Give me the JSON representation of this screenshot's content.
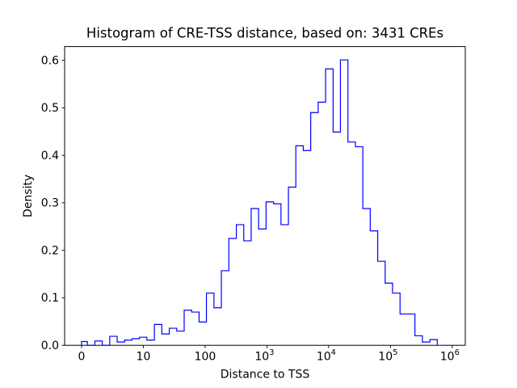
{
  "figure": {
    "title": "Histogram of CRE-TSS distance, based on: 3431 CREs",
    "background_color": "#ffffff",
    "line_color": "#0000ff",
    "axis_color": "#000000"
  },
  "chart_data": {
    "type": "bar",
    "subtype": "step-histogram",
    "title": "Histogram of CRE-TSS distance, based on: 3431 CREs",
    "xlabel": "Distance to TSS",
    "ylabel": "Density",
    "sample_count_text": "3431 CREs",
    "xscale": "symlog",
    "legend": "none",
    "grid": false,
    "ylim": [
      0,
      0.629
    ],
    "xticks": [
      {
        "value": 0,
        "label": "0",
        "exponent": null
      },
      {
        "value": 10,
        "label": "10",
        "exponent": null
      },
      {
        "value": 100,
        "label": "100",
        "exponent": null
      },
      {
        "value": 1000,
        "label": "10",
        "exponent": "3"
      },
      {
        "value": 10000,
        "label": "10",
        "exponent": "4"
      },
      {
        "value": 100000,
        "label": "10",
        "exponent": "5"
      },
      {
        "value": 1000000,
        "label": "10",
        "exponent": "6"
      }
    ],
    "yticks": [
      {
        "value": 0.0,
        "label": "0.0"
      },
      {
        "value": 0.1,
        "label": "0.1"
      },
      {
        "value": 0.2,
        "label": "0.2"
      },
      {
        "value": 0.3,
        "label": "0.3"
      },
      {
        "value": 0.4,
        "label": "0.4"
      },
      {
        "value": 0.5,
        "label": "0.5"
      },
      {
        "value": 0.6,
        "label": "0.6"
      }
    ],
    "bin_edges": [
      0,
      0.94,
      2.15,
      3.35,
      4.56,
      5.76,
      6.97,
      8.17,
      9.38,
      11.4,
      15.1,
      19.9,
      26.3,
      34.7,
      45.8,
      60.5,
      79.8,
      105,
      139,
      183,
      242,
      320,
      422,
      556,
      734,
      969,
      1280,
      1690,
      2230,
      2940,
      3880,
      5120,
      6760,
      8920,
      11800,
      15500,
      20500,
      27100,
      35700,
      47100,
      62200,
      82100,
      108000,
      143000,
      189000,
      249000,
      329000,
      434000,
      573000
    ],
    "densities": [
      0.008,
      0.0,
      0.009,
      0.0,
      0.019,
      0.007,
      0.011,
      0.014,
      0.017,
      0.011,
      0.044,
      0.024,
      0.036,
      0.03,
      0.074,
      0.07,
      0.049,
      0.11,
      0.079,
      0.157,
      0.225,
      0.254,
      0.22,
      0.288,
      0.245,
      0.302,
      0.298,
      0.254,
      0.333,
      0.42,
      0.41,
      0.49,
      0.512,
      0.582,
      0.449,
      0.601,
      0.428,
      0.418,
      0.288,
      0.241,
      0.177,
      0.131,
      0.11,
      0.066,
      0.066,
      0.02,
      0.007,
      0.012
    ]
  }
}
